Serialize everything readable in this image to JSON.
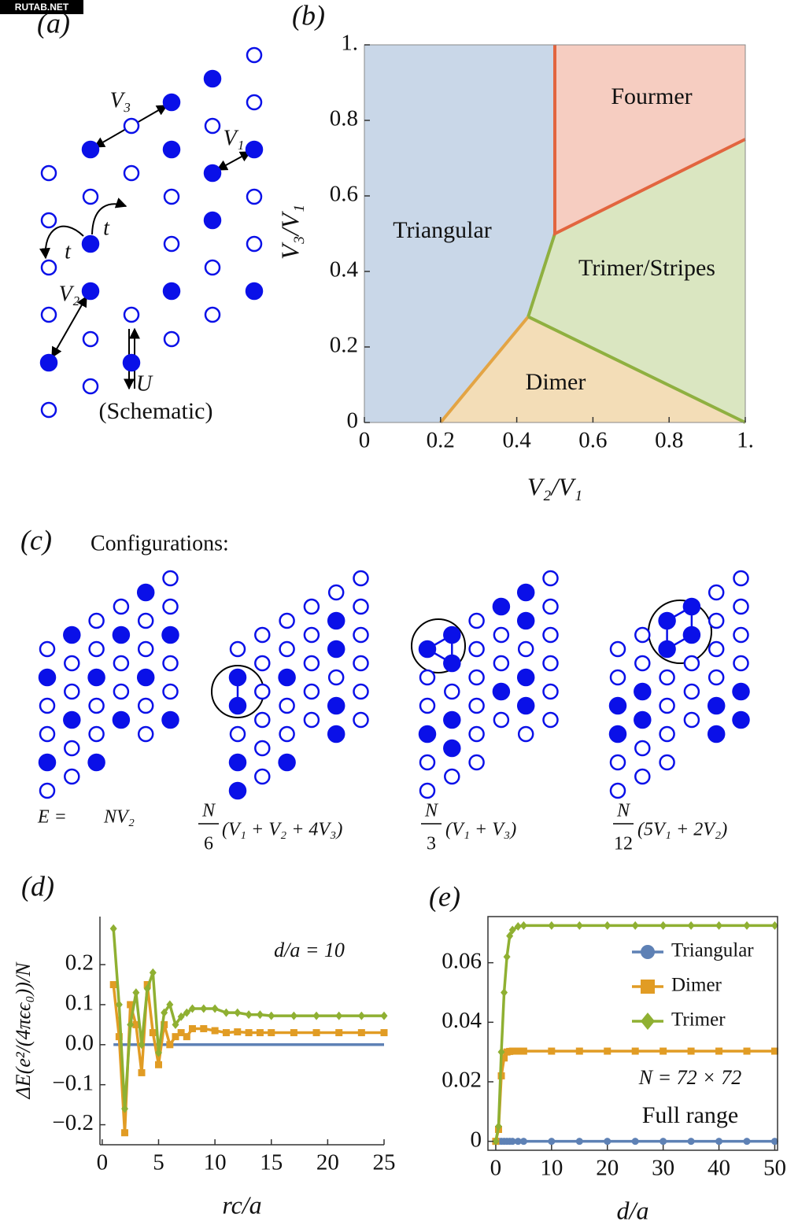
{
  "watermark": "RUTAB.NET",
  "schematic": {
    "label": "(a)",
    "labels": {
      "v3": "V₃",
      "v1": "V₁",
      "v2": "V₂",
      "t1": "t",
      "t2": "t",
      "u": "U"
    },
    "caption": "(Schematic)"
  },
  "configurations": {
    "label": "(c)",
    "title": "Configurations:",
    "energies": [
      {
        "lhs": "E =",
        "expr": "NV₂"
      },
      {
        "numerator": "N",
        "denominator": "6",
        "expr": "(V₁ + V₂ + 4V₃)"
      },
      {
        "numerator": "N",
        "denominator": "3",
        "expr": "(V₁ + V₃)"
      },
      {
        "numerator": "N",
        "denominator": "12",
        "expr": "(5V₁ + 2V₂)"
      }
    ]
  },
  "chart_data": [
    {
      "type": "phase",
      "label": "(b)",
      "x_label": "V₂/V₁",
      "y_label": "V₃/V₁",
      "xlim": [
        0,
        1
      ],
      "ylim": [
        0,
        1
      ],
      "xticks": [
        0,
        0.2,
        0.4,
        0.6,
        0.8,
        {
          "value": 1,
          "label": "1."
        }
      ],
      "yticks": [
        0,
        0.2,
        0.4,
        0.6,
        0.8,
        {
          "value": 1,
          "label": "1."
        }
      ],
      "regions": [
        {
          "name": "Triangular",
          "color": "#c9d7e8",
          "polygon": [
            [
              0,
              0
            ],
            [
              0.2,
              0
            ],
            [
              0.43,
              0.28
            ],
            [
              0.5,
              0.5
            ],
            [
              0.5,
              1
            ],
            [
              0,
              1
            ]
          ]
        },
        {
          "name": "Fourmer",
          "color": "#f6cdc1",
          "polygon": [
            [
              0.5,
              0.5
            ],
            [
              0.5,
              1
            ],
            [
              1,
              1
            ],
            [
              1,
              0.75
            ]
          ]
        },
        {
          "name": "Trimer/Stripes",
          "color": "#dae6c1",
          "polygon": [
            [
              0.5,
              0.5
            ],
            [
              1,
              0.75
            ],
            [
              1,
              0
            ],
            [
              0.43,
              0.28
            ]
          ]
        },
        {
          "name": "Dimer",
          "color": "#f3ddb7",
          "polygon": [
            [
              0.2,
              0
            ],
            [
              0.43,
              0.28
            ],
            [
              1,
              0
            ]
          ]
        }
      ],
      "boundaries": [
        {
          "color": "#e3a444",
          "points": [
            [
              0.2,
              0
            ],
            [
              0.43,
              0.28
            ]
          ]
        },
        {
          "color": "#8fb040",
          "points": [
            [
              0.43,
              0.28
            ],
            [
              0.5,
              0.5
            ]
          ]
        },
        {
          "color": "#8fb040",
          "points": [
            [
              0.43,
              0.28
            ],
            [
              1,
              0
            ]
          ]
        },
        {
          "color": "#e2653f",
          "points": [
            [
              0.5,
              1
            ],
            [
              0.5,
              0.5
            ],
            [
              1,
              0.75
            ]
          ]
        }
      ]
    },
    {
      "type": "line",
      "label": "(d)",
      "x_label": "rc/a",
      "y_label": "ΔE(e²/(4πϵϵ₀))/N",
      "annotations": [
        "d/a = 10"
      ],
      "x": [
        1,
        1.5,
        2,
        2.5,
        3,
        3.5,
        4,
        4.5,
        5,
        5.5,
        6,
        6.5,
        7,
        7.5,
        8,
        9,
        10,
        11,
        12,
        13,
        14,
        15,
        17,
        19,
        21,
        23,
        25
      ],
      "series": [
        {
          "color": "#5e81b5",
          "values": [
            0,
            0,
            0,
            0,
            0,
            0,
            0,
            0,
            0,
            0,
            0,
            0,
            0,
            0,
            0,
            0,
            0,
            0,
            0,
            0,
            0,
            0,
            0,
            0,
            0,
            0,
            0
          ]
        },
        {
          "color": "#e19c24",
          "marker": "square",
          "values": [
            0.15,
            0.02,
            -0.22,
            0.1,
            0.05,
            -0.07,
            0.15,
            0.03,
            -0.05,
            0.05,
            0.0,
            0.02,
            0.03,
            0.02,
            0.04,
            0.04,
            0.035,
            0.03,
            0.032,
            0.03,
            0.03,
            0.03,
            0.03,
            0.03,
            0.03,
            0.03,
            0.03
          ]
        },
        {
          "color": "#8fb032",
          "marker": "diamond",
          "values": [
            0.29,
            0.1,
            -0.16,
            0.05,
            0.13,
            0.0,
            0.14,
            0.18,
            -0.02,
            0.08,
            0.1,
            0.05,
            0.07,
            0.08,
            0.09,
            0.09,
            0.09,
            0.08,
            0.08,
            0.075,
            0.075,
            0.072,
            0.072,
            0.072,
            0.072,
            0.072,
            0.072
          ]
        }
      ],
      "xlim": [
        -0.2,
        25
      ],
      "ylim": [
        -0.25,
        0.32
      ],
      "xticks": [
        0,
        5,
        10,
        15,
        20,
        25
      ],
      "yticks": [
        {
          "value": -0.2,
          "label": "−0.2"
        },
        {
          "value": -0.1,
          "label": "−0.1"
        },
        {
          "value": 0,
          "label": "0.0"
        },
        0.1,
        0.2
      ]
    },
    {
      "type": "line",
      "label": "(e)",
      "x_label": "d/a",
      "annotations": [
        "N = 72 × 72",
        "Full range"
      ],
      "x": [
        0,
        0.5,
        1,
        1.5,
        2,
        2.5,
        3,
        4,
        5,
        10,
        15,
        20,
        25,
        30,
        35,
        40,
        45,
        50
      ],
      "series": [
        {
          "name": "Triangular",
          "color": "#5e81b5",
          "marker": "circle",
          "values": [
            0,
            0,
            0,
            0,
            0,
            0,
            0,
            0,
            0,
            0,
            0,
            0,
            0,
            0,
            0,
            0,
            0,
            0
          ]
        },
        {
          "name": "Dimer",
          "color": "#e19c24",
          "marker": "square",
          "values": [
            0,
            0.004,
            0.022,
            0.028,
            0.03,
            0.0302,
            0.0303,
            0.0303,
            0.0303,
            0.0303,
            0.0303,
            0.0303,
            0.0303,
            0.0303,
            0.0303,
            0.0303,
            0.0303,
            0.0303
          ]
        },
        {
          "name": "Trimer",
          "color": "#8fb032",
          "marker": "diamond",
          "values": [
            0,
            0.005,
            0.03,
            0.05,
            0.062,
            0.069,
            0.071,
            0.0722,
            0.0725,
            0.0725,
            0.0725,
            0.0725,
            0.0725,
            0.0725,
            0.0725,
            0.0725,
            0.0725,
            0.0725
          ]
        }
      ],
      "xlim": [
        -1.4,
        50.5
      ],
      "ylim": [
        -0.003,
        0.0755
      ],
      "xticks": [
        0,
        10,
        20,
        30,
        40,
        50
      ],
      "yticks": [
        0,
        0.02,
        0.04,
        0.06
      ],
      "legend": "upper right",
      "frame": true
    }
  ]
}
